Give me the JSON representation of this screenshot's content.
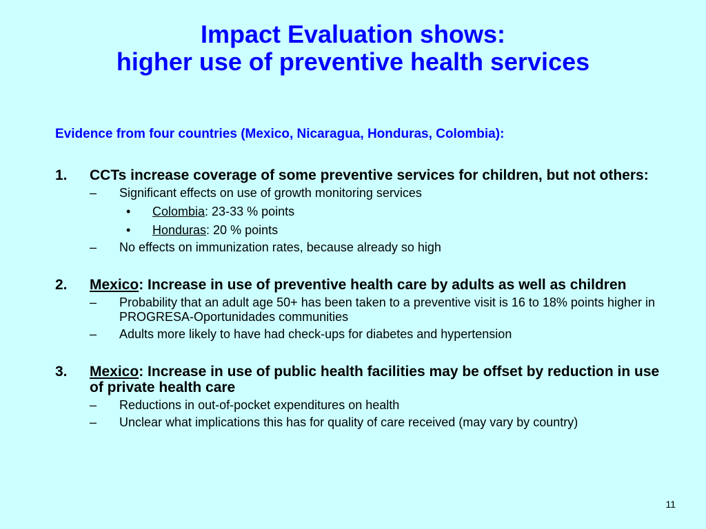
{
  "title": {
    "line1": "Impact Evaluation shows:",
    "line2": "higher use of preventive health services"
  },
  "subtitle": "Evidence from four countries (Mexico, Nicaragua, Honduras, Colombia):",
  "points": [
    {
      "number": "1.",
      "head_prefix": "",
      "head_text": "CCTs increase coverage of some preventive services for children, but not others:",
      "subs": [
        {
          "text": "Significant effects on use of growth monitoring services",
          "bullets": [
            {
              "label": "Colombia",
              "text": ": 23-33 % points"
            },
            {
              "label": "Honduras",
              "text": ": 20 % points"
            }
          ]
        },
        {
          "text": "No effects on immunization rates, because already so high",
          "bullets": []
        }
      ]
    },
    {
      "number": "2.",
      "head_prefix": "Mexico",
      "head_text": ": Increase in use of preventive health care by adults as well as children",
      "subs": [
        {
          "text": "Probability that an adult age 50+ has been taken to a preventive visit is 16 to 18% points higher in PROGRESA-Oportunidades communities",
          "bullets": []
        },
        {
          "text": "Adults more likely to have had check-ups for diabetes and hypertension",
          "bullets": []
        }
      ]
    },
    {
      "number": "3.",
      "head_prefix": "Mexico",
      "head_text": ": Increase in use of public health facilities may be offset by reduction in use of private health care",
      "subs": [
        {
          "text": "Reductions in out-of-pocket expenditures on health",
          "bullets": []
        },
        {
          "text": "Unclear what implications this has for quality of care received (may vary by country)",
          "bullets": []
        }
      ]
    }
  ],
  "symbols": {
    "dash": "–",
    "bullet": "•"
  },
  "page_number": "11",
  "colors": {
    "background": "#ccffff",
    "title": "#0000ff",
    "body_text": "#000000"
  }
}
